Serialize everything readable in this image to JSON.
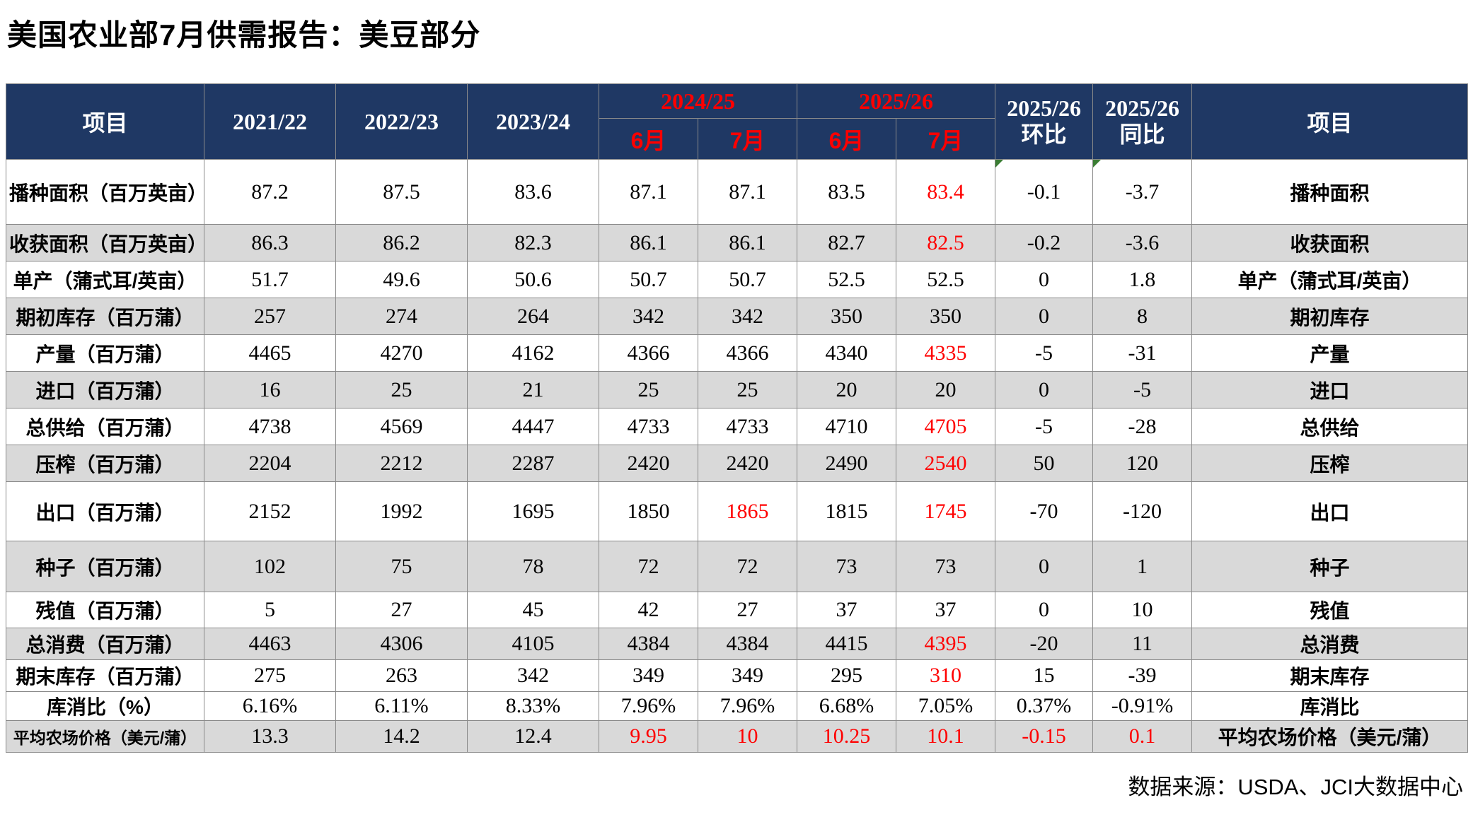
{
  "title": "美国农业部7月供需报告：美豆部分",
  "footer": {
    "source": "数据来源：USDA、JCI大数据中心"
  },
  "colors": {
    "header_bg": "#1F3864",
    "header_text": "#FFFFFF",
    "accent_red": "#FF0000",
    "shaded_row_bg": "#D9D9D9",
    "border": "#8A8A8A",
    "error_marker_green": "#3A7D33"
  },
  "table": {
    "header": {
      "item_left": "项目",
      "years": [
        "2021/22",
        "2022/23",
        "2023/24"
      ],
      "groups": [
        {
          "label": "2024/25",
          "months": [
            "6月",
            "7月"
          ]
        },
        {
          "label": "2025/26",
          "months": [
            "6月",
            "7月"
          ]
        }
      ],
      "compares": [
        {
          "line1": "2025/26",
          "line2": "环比"
        },
        {
          "line1": "2025/26",
          "line2": "同比"
        }
      ],
      "item_right": "项目"
    },
    "rows": [
      {
        "label": "播种面积（百万英亩）",
        "label_right": "播种面积",
        "shaded": false,
        "values": [
          "87.2",
          "87.5",
          "83.6",
          "87.1",
          "87.1",
          "83.5",
          "83.4",
          "-0.1",
          "-3.7"
        ],
        "red": [
          6
        ],
        "green_corner": [
          7,
          8
        ]
      },
      {
        "label": "收获面积（百万英亩）",
        "label_right": "收获面积",
        "shaded": true,
        "values": [
          "86.3",
          "86.2",
          "82.3",
          "86.1",
          "86.1",
          "82.7",
          "82.5",
          "-0.2",
          "-3.6"
        ],
        "red": [
          6
        ],
        "green_corner": []
      },
      {
        "label": "单产（蒲式耳/英亩）",
        "label_right": "单产（蒲式耳/英亩）",
        "shaded": false,
        "values": [
          "51.7",
          "49.6",
          "50.6",
          "50.7",
          "50.7",
          "52.5",
          "52.5",
          "0",
          "1.8"
        ],
        "red": [],
        "green_corner": []
      },
      {
        "label": "期初库存（百万蒲）",
        "label_right": "期初库存",
        "shaded": true,
        "values": [
          "257",
          "274",
          "264",
          "342",
          "342",
          "350",
          "350",
          "0",
          "8"
        ],
        "red": [],
        "green_corner": []
      },
      {
        "label": "产量（百万蒲）",
        "label_right": "产量",
        "shaded": false,
        "values": [
          "4465",
          "4270",
          "4162",
          "4366",
          "4366",
          "4340",
          "4335",
          "-5",
          "-31"
        ],
        "red": [
          6
        ],
        "green_corner": []
      },
      {
        "label": "进口（百万蒲）",
        "label_right": "进口",
        "shaded": true,
        "values": [
          "16",
          "25",
          "21",
          "25",
          "25",
          "20",
          "20",
          "0",
          "-5"
        ],
        "red": [],
        "green_corner": []
      },
      {
        "label": "总供给（百万蒲）",
        "label_right": "总供给",
        "shaded": false,
        "values": [
          "4738",
          "4569",
          "4447",
          "4733",
          "4733",
          "4710",
          "4705",
          "-5",
          "-28"
        ],
        "red": [
          6
        ],
        "green_corner": []
      },
      {
        "label": "压榨（百万蒲）",
        "label_right": "压榨",
        "shaded": true,
        "values": [
          "2204",
          "2212",
          "2287",
          "2420",
          "2420",
          "2490",
          "2540",
          "50",
          "120"
        ],
        "red": [
          6
        ],
        "green_corner": []
      },
      {
        "label": "出口（百万蒲）",
        "label_right": "出口",
        "shaded": false,
        "values": [
          "2152",
          "1992",
          "1695",
          "1850",
          "1865",
          "1815",
          "1745",
          "-70",
          "-120"
        ],
        "red": [
          4,
          6
        ],
        "green_corner": []
      },
      {
        "label": "种子（百万蒲）",
        "label_right": "种子",
        "shaded": true,
        "values": [
          "102",
          "75",
          "78",
          "72",
          "72",
          "73",
          "73",
          "0",
          "1"
        ],
        "red": [],
        "green_corner": []
      },
      {
        "label": "残值（百万蒲）",
        "label_right": "残值",
        "shaded": false,
        "values": [
          "5",
          "27",
          "45",
          "42",
          "27",
          "37",
          "37",
          "0",
          "10"
        ],
        "red": [],
        "green_corner": []
      },
      {
        "label": "总消费（百万蒲）",
        "label_right": "总消费",
        "shaded": true,
        "values": [
          "4463",
          "4306",
          "4105",
          "4384",
          "4384",
          "4415",
          "4395",
          "-20",
          "11"
        ],
        "red": [
          6
        ],
        "green_corner": []
      },
      {
        "label": "期末库存（百万蒲）",
        "label_right": "期末库存",
        "shaded": false,
        "values": [
          "275",
          "263",
          "342",
          "349",
          "349",
          "295",
          "310",
          "15",
          "-39"
        ],
        "red": [
          6
        ],
        "green_corner": []
      },
      {
        "label": "库消比（%）",
        "label_right": "库消比",
        "shaded": false,
        "values": [
          "6.16%",
          "6.11%",
          "8.33%",
          "7.96%",
          "7.96%",
          "6.68%",
          "7.05%",
          "0.37%",
          "-0.91%"
        ],
        "red": [],
        "green_corner": []
      },
      {
        "label": "平均农场价格（美元/蒲）",
        "label_right": "平均农场价格（美元/蒲）",
        "shaded": true,
        "values": [
          "13.3",
          "14.2",
          "12.4",
          "9.95",
          "10",
          "10.25",
          "10.1",
          "-0.15",
          "0.1"
        ],
        "red": [
          3,
          4,
          5,
          6,
          7,
          8
        ],
        "green_corner": []
      }
    ]
  }
}
